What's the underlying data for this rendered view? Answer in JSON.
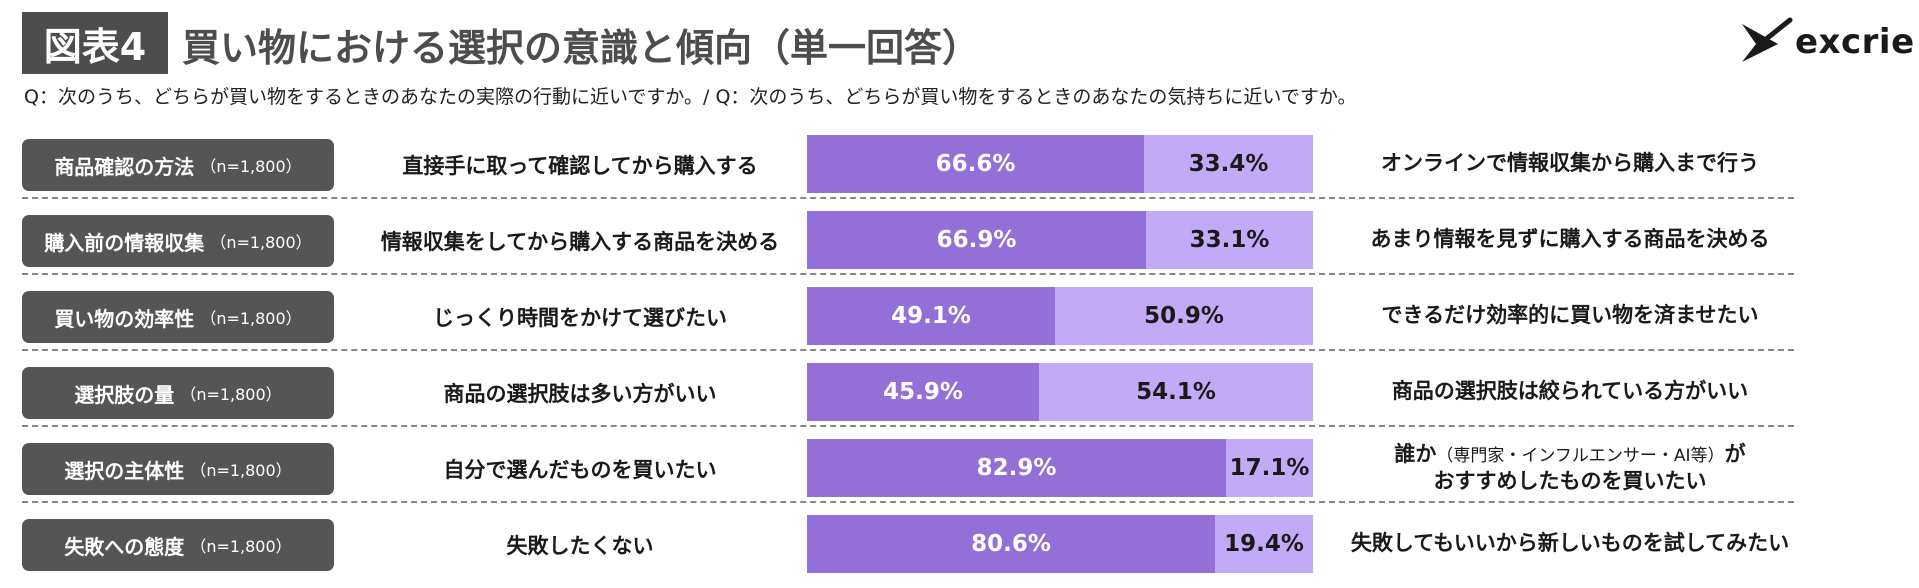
{
  "header": {
    "tag": "図表4",
    "title": "買い物における選択の意識と傾向（単一回答）",
    "question": "Q：次のうち、どちらが買い物をするときのあなたの実際の行動に近いですか。/ Q：次のうち、どちらが買い物をするときのあなたの気持ちに近いですか。",
    "logo_text": "excrie"
  },
  "colors": {
    "left_segment": "#9370d8",
    "right_segment": "#c3aaf7",
    "label_bg": "#555555"
  },
  "chart_data": {
    "type": "bar",
    "orientation": "horizontal-stacked-100",
    "categories": [
      {
        "name": "商品確認の方法",
        "n": "（n=1,800）"
      },
      {
        "name": "購入前の情報収集",
        "n": "（n=1,800）"
      },
      {
        "name": "買い物の効率性",
        "n": "（n=1,800）"
      },
      {
        "name": "選択肢の量",
        "n": "（n=1,800）"
      },
      {
        "name": "選択の主体性",
        "n": "（n=1,800）"
      },
      {
        "name": "失敗への態度",
        "n": "（n=1,800）"
      }
    ],
    "left_labels": [
      "直接手に取って確認してから購入する",
      "情報収集をしてから購入する商品を決める",
      "じっくり時間をかけて選びたい",
      "商品の選択肢は多い方がいい",
      "自分で選んだものを買いたい",
      "失敗したくない"
    ],
    "right_labels": [
      {
        "pre": "オンラインで情報収集から購入まで行う",
        "note": "",
        "post": "",
        "line2": ""
      },
      {
        "pre": "あまり情報を見ずに購入する商品を決める",
        "note": "",
        "post": "",
        "line2": ""
      },
      {
        "pre": "できるだけ効率的に買い物を済ませたい",
        "note": "",
        "post": "",
        "line2": ""
      },
      {
        "pre": "商品の選択肢は絞られている方がいい",
        "note": "",
        "post": "",
        "line2": ""
      },
      {
        "pre": "誰か",
        "note": "（専門家・インフルエンサー・AI等）",
        "post": "が",
        "line2": "おすすめしたものを買いたい"
      },
      {
        "pre": "失敗してもいいから新しいものを試してみたい",
        "note": "",
        "post": "",
        "line2": ""
      }
    ],
    "series": [
      {
        "values": [
          66.6,
          66.9,
          49.1,
          45.9,
          82.9,
          80.6
        ]
      },
      {
        "values": [
          33.4,
          33.1,
          50.9,
          54.1,
          17.1,
          19.4
        ]
      }
    ],
    "value_labels": [
      [
        "66.6%",
        "33.4%"
      ],
      [
        "66.9%",
        "33.1%"
      ],
      [
        "49.1%",
        "50.9%"
      ],
      [
        "45.9%",
        "54.1%"
      ],
      [
        "82.9%",
        "17.1%"
      ],
      [
        "80.6%",
        "19.4%"
      ]
    ],
    "xlim": [
      0,
      100
    ]
  }
}
